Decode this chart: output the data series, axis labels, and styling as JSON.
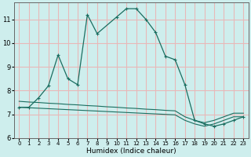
{
  "xlabel": "Humidex (Indice chaleur)",
  "bg_color": "#ceeeed",
  "grid_color": "#e8b8b8",
  "line_color": "#1a6e60",
  "x_main": [
    0,
    1,
    2,
    3,
    4,
    5,
    6,
    7,
    8,
    10,
    11,
    12,
    13,
    14,
    15,
    16,
    17,
    18,
    19,
    20,
    21,
    22,
    23
  ],
  "y_main": [
    7.3,
    7.3,
    7.7,
    8.2,
    9.5,
    8.5,
    8.25,
    11.2,
    10.4,
    11.1,
    11.45,
    11.45,
    11.0,
    10.45,
    9.45,
    9.3,
    8.25,
    6.75,
    6.6,
    6.5,
    6.6,
    6.75,
    6.9
  ],
  "x_env1": [
    0,
    1,
    2,
    3,
    4,
    5,
    6,
    7,
    8,
    9,
    10,
    11,
    12,
    13,
    14,
    15,
    16,
    17,
    18,
    19,
    20,
    21,
    22,
    23
  ],
  "y_env1": [
    7.3,
    7.28,
    7.26,
    7.24,
    7.22,
    7.2,
    7.18,
    7.16,
    7.14,
    7.12,
    7.1,
    7.08,
    7.06,
    7.04,
    7.02,
    7.0,
    6.98,
    6.75,
    6.6,
    6.5,
    6.6,
    6.75,
    6.9,
    6.9
  ],
  "x_env2": [
    0,
    1,
    2,
    3,
    4,
    5,
    6,
    7,
    8,
    9,
    10,
    11,
    12,
    13,
    14,
    15,
    16,
    17,
    18,
    19,
    20,
    21,
    22,
    23
  ],
  "y_env2": [
    7.55,
    7.52,
    7.5,
    7.47,
    7.45,
    7.42,
    7.4,
    7.37,
    7.35,
    7.32,
    7.3,
    7.27,
    7.25,
    7.22,
    7.2,
    7.17,
    7.15,
    6.9,
    6.75,
    6.65,
    6.75,
    6.9,
    7.05,
    7.05
  ],
  "ylim": [
    6.0,
    11.7
  ],
  "xlim": [
    -0.5,
    23.5
  ],
  "yticks": [
    6,
    7,
    8,
    9,
    10,
    11
  ],
  "xticks": [
    0,
    1,
    2,
    3,
    4,
    5,
    6,
    7,
    8,
    9,
    10,
    11,
    12,
    13,
    14,
    15,
    16,
    17,
    18,
    19,
    20,
    21,
    22,
    23
  ]
}
